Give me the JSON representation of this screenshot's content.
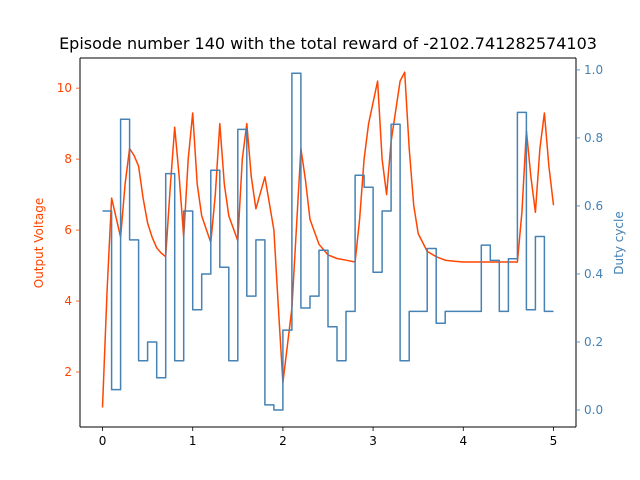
{
  "chart_data": {
    "type": "line",
    "title": "Episode number 140 with the total reward of -2102.741282574103",
    "xlabel": "",
    "xlim": [
      -0.25,
      5.25
    ],
    "x_ticks": [
      0,
      1,
      2,
      3,
      4,
      5
    ],
    "grid": false,
    "legend": "none",
    "series": [
      {
        "name": "Output Voltage",
        "axis": "left",
        "ylabel": "Output Voltage",
        "ylim": [
          0.45,
          10.85
        ],
        "y_ticks": [
          2,
          4,
          6,
          8,
          10
        ],
        "color": "#ff4500",
        "step": false,
        "x": [
          0,
          0.05,
          0.1,
          0.2,
          0.25,
          0.3,
          0.35,
          0.4,
          0.45,
          0.5,
          0.55,
          0.6,
          0.65,
          0.7,
          0.75,
          0.8,
          0.85,
          0.9,
          0.95,
          1.0,
          1.05,
          1.1,
          1.2,
          1.25,
          1.3,
          1.35,
          1.4,
          1.5,
          1.55,
          1.6,
          1.65,
          1.7,
          1.8,
          1.9,
          1.95,
          2.0,
          2.1,
          2.2,
          2.25,
          2.3,
          2.4,
          2.5,
          2.6,
          2.7,
          2.8,
          2.85,
          2.9,
          2.95,
          3.0,
          3.05,
          3.1,
          3.15,
          3.2,
          3.3,
          3.35,
          3.4,
          3.45,
          3.5,
          3.6,
          3.7,
          3.8,
          3.9,
          4.0,
          4.2,
          4.4,
          4.6,
          4.65,
          4.7,
          4.75,
          4.8,
          4.85,
          4.9,
          4.95,
          5.0
        ],
        "y": [
          1.0,
          4.3,
          6.9,
          5.8,
          7.3,
          8.3,
          8.1,
          7.8,
          6.9,
          6.2,
          5.8,
          5.5,
          5.35,
          5.25,
          7.2,
          8.9,
          7.5,
          5.8,
          8.0,
          9.3,
          7.3,
          6.4,
          5.65,
          7.0,
          9.0,
          7.3,
          6.4,
          5.7,
          8.0,
          9.0,
          7.5,
          6.6,
          7.5,
          6.0,
          3.8,
          1.7,
          3.8,
          8.3,
          7.4,
          6.3,
          5.6,
          5.3,
          5.2,
          5.15,
          5.1,
          6.3,
          8.0,
          9.0,
          9.6,
          10.2,
          8.0,
          7.0,
          8.5,
          10.2,
          10.45,
          8.3,
          6.7,
          5.9,
          5.4,
          5.25,
          5.15,
          5.12,
          5.1,
          5.1,
          5.1,
          5.1,
          6.5,
          8.8,
          7.5,
          6.5,
          8.3,
          9.3,
          7.8,
          6.7
        ]
      },
      {
        "name": "Duty cycle",
        "axis": "right",
        "ylabel": "Duty cycle",
        "ylim": [
          -0.05,
          1.035
        ],
        "y_ticks": [
          0.0,
          0.2,
          0.4,
          0.6,
          0.8,
          1.0
        ],
        "color": "#4682b4",
        "step": true,
        "x": [
          0,
          0.1,
          0.2,
          0.3,
          0.4,
          0.5,
          0.6,
          0.7,
          0.8,
          0.9,
          1.0,
          1.1,
          1.2,
          1.3,
          1.4,
          1.5,
          1.6,
          1.7,
          1.8,
          1.9,
          2.0,
          2.1,
          2.2,
          2.3,
          2.4,
          2.5,
          2.6,
          2.7,
          2.8,
          2.9,
          3.0,
          3.1,
          3.2,
          3.3,
          3.4,
          3.5,
          3.6,
          3.7,
          3.8,
          3.9,
          4.0,
          4.1,
          4.2,
          4.3,
          4.4,
          4.5,
          4.6,
          4.7,
          4.8,
          4.9,
          5.0
        ],
        "y": [
          0.585,
          0.06,
          0.855,
          0.5,
          0.145,
          0.2,
          0.095,
          0.695,
          0.145,
          0.585,
          0.295,
          0.4,
          0.705,
          0.42,
          0.145,
          0.825,
          0.335,
          0.5,
          0.015,
          0.0,
          0.235,
          0.99,
          0.3,
          0.335,
          0.47,
          0.245,
          0.145,
          0.29,
          0.69,
          0.655,
          0.405,
          0.585,
          0.84,
          0.145,
          0.29,
          0.29,
          0.475,
          0.255,
          0.29,
          0.29,
          0.29,
          0.29,
          0.485,
          0.44,
          0.29,
          0.445,
          0.875,
          0.295,
          0.51,
          0.29,
          0.29
        ]
      }
    ]
  }
}
